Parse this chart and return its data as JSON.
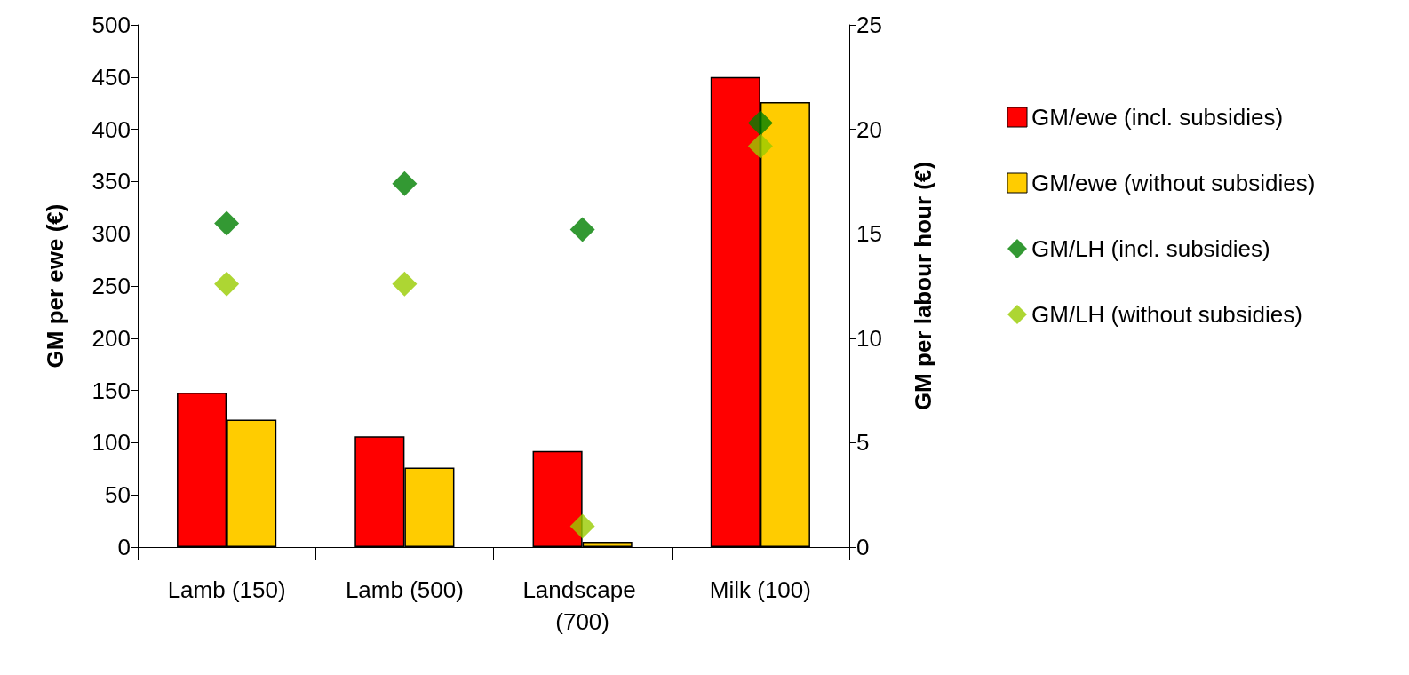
{
  "chart_data": {
    "type": "bar",
    "ylabel": "GM per ewe (€)",
    "y2label": "GM per labour hour (€)",
    "categories": [
      "Lamb (150)",
      "Lamb (500)",
      "Landscape (700)",
      "Milk (100)"
    ],
    "ylim": [
      0,
      500
    ],
    "yticks": [
      0,
      50,
      100,
      150,
      200,
      250,
      300,
      350,
      400,
      450,
      500
    ],
    "y2lim": [
      0,
      25
    ],
    "y2ticks": [
      0,
      5,
      10,
      15,
      20,
      25
    ],
    "grid": false,
    "legend": "right",
    "marker": "diamond",
    "series": [
      {
        "name": "GM/ewe (incl. subsidies)",
        "color": "#ff0000",
        "values": [
          148,
          106,
          92,
          450
        ]
      },
      {
        "name": "GM/ewe (without subsidies)",
        "color": "#ffcc00",
        "values": [
          122,
          76,
          5,
          426
        ]
      },
      {
        "name": "GM/LH (incl. subsidies)",
        "type": "scatter",
        "axis": "y2",
        "color": "#008000",
        "x": [
          "Lamb (150)",
          "Lamb (500)",
          "Landscape (700)",
          "Milk (100)"
        ],
        "values": [
          15.5,
          17.4,
          15.2,
          20.3
        ]
      },
      {
        "name": "GM/LH (without subsidies)",
        "type": "scatter",
        "axis": "y2",
        "color": "#99cc00",
        "x": [
          "Lamb (150)",
          "Lamb (500)",
          "Landscape (700)",
          "Milk (100)"
        ],
        "values": [
          12.6,
          12.6,
          1.0,
          19.2
        ]
      }
    ]
  }
}
